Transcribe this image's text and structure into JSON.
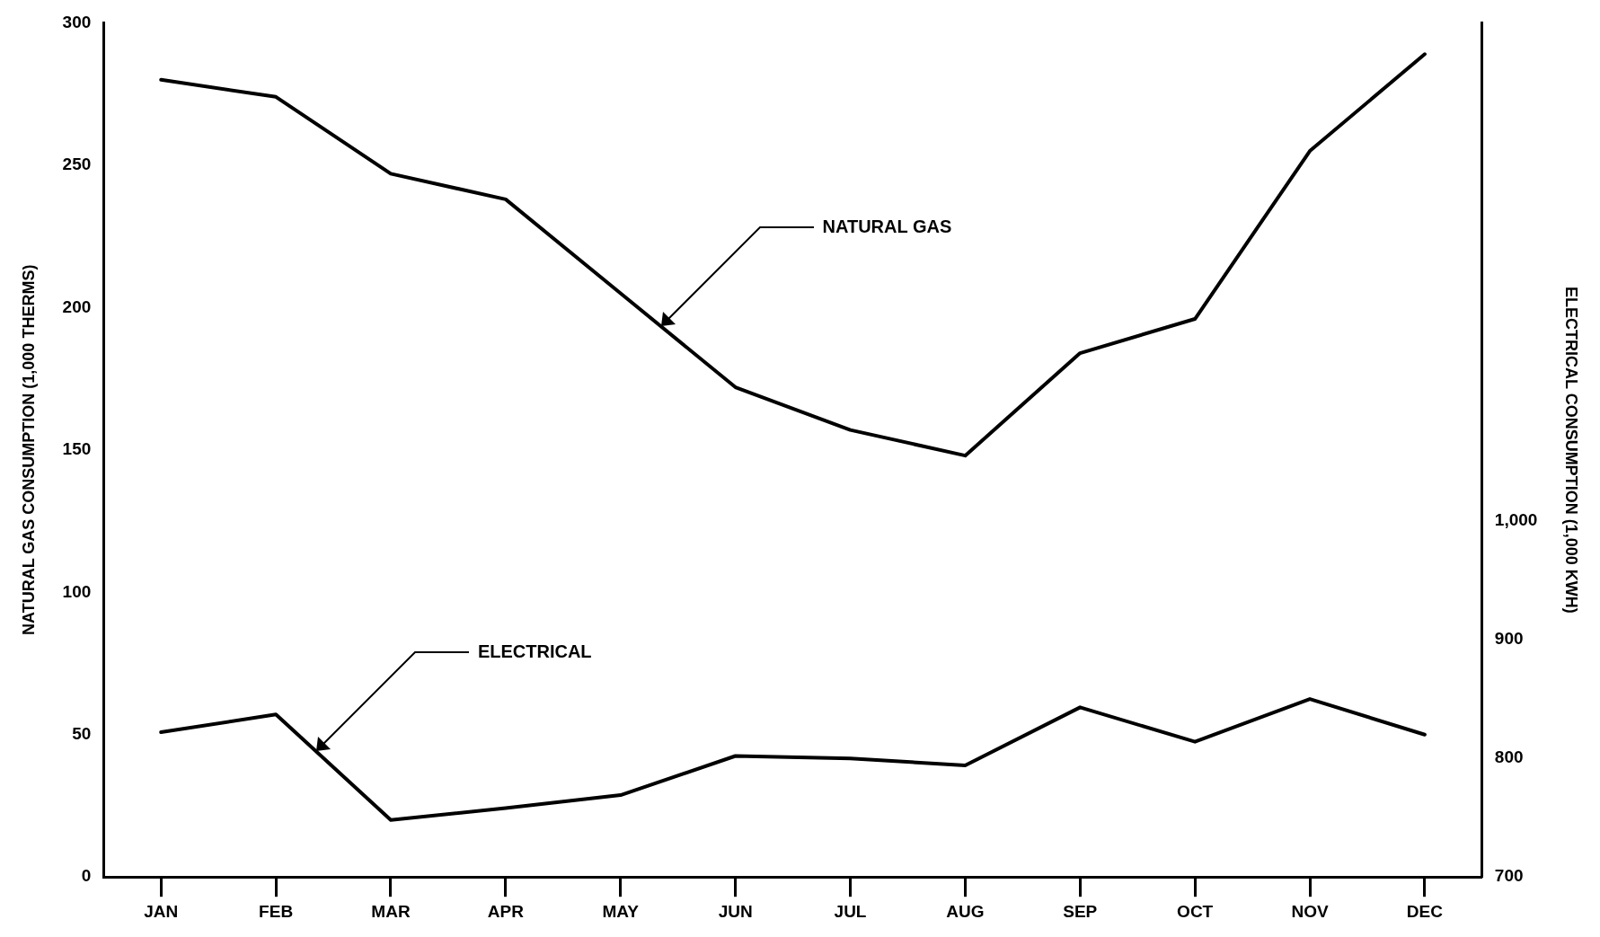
{
  "chart_data": {
    "type": "line",
    "ylabel": "NATURAL GAS CONSUMPTION (1,000 THERMS)",
    "y2label": "ELECTRICAL CONSUMPTION (1,000 KWH)",
    "categories": [
      "JAN",
      "FEB",
      "MAR",
      "APR",
      "MAY",
      "JUN",
      "JUL",
      "AUG",
      "SEP",
      "OCT",
      "NOV",
      "DEC"
    ],
    "series": [
      {
        "color": "#000000",
        "values": [
          280,
          274,
          247,
          238,
          205,
          172,
          157,
          148,
          184,
          196,
          255,
          289
        ]
      },
      {
        "color": "#000000",
        "axis": "y2",
        "values": [
          822,
          837,
          748,
          758,
          769,
          802,
          800,
          794,
          843,
          814,
          850,
          820
        ]
      }
    ],
    "annotations": [
      "NATURAL GAS",
      "ELECTRICAL"
    ],
    "ylim": [
      0,
      300
    ],
    "yticks": [
      0,
      50,
      100,
      150,
      200,
      250,
      300
    ],
    "y2lim": [
      700,
      1420
    ],
    "y2ticks": [
      700,
      800,
      900,
      {
        "value": 1000,
        "label": "1,000"
      }
    ],
    "grid": false,
    "legend": false,
    "marker": "none",
    "line_style": "solid"
  }
}
